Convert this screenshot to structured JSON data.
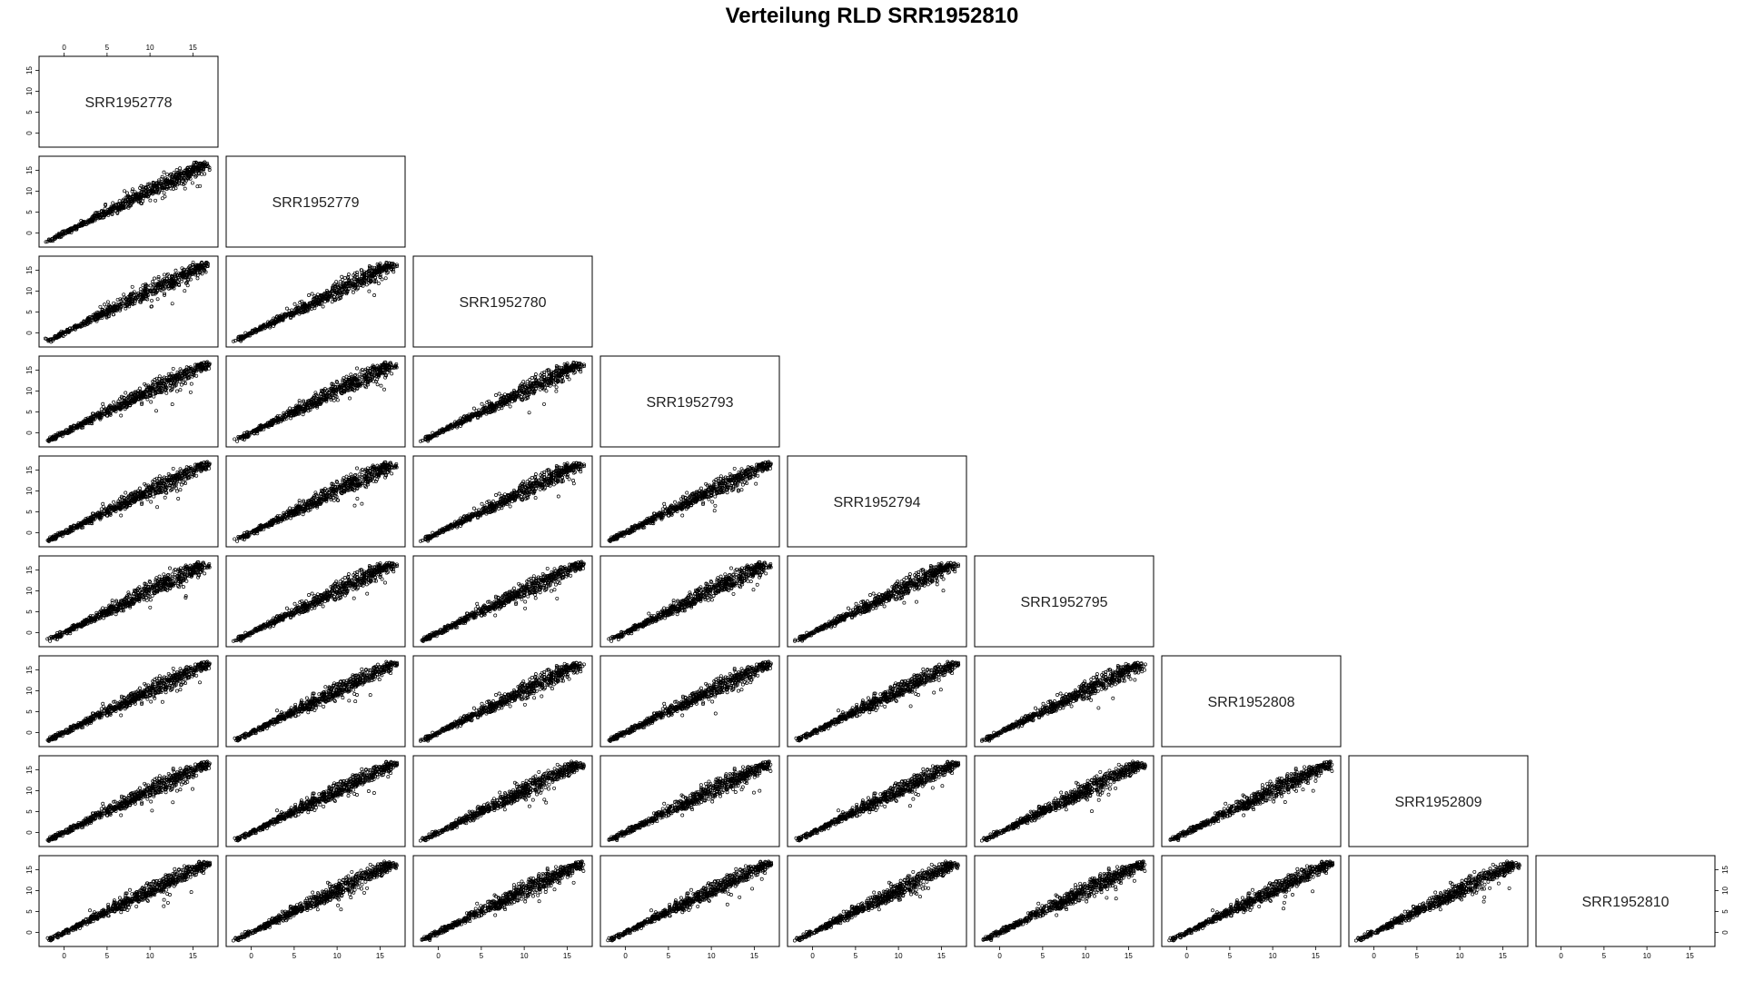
{
  "chart_data": {
    "type": "scatter",
    "title": "Verteilung RLD SRR1952810",
    "layout": "lower-triangle pairs matrix",
    "samples": [
      "SRR1952778",
      "SRR1952779",
      "SRR1952780",
      "SRR1952793",
      "SRR1952794",
      "SRR1952795",
      "SRR1952808",
      "SRR1952809",
      "SRR1952810"
    ],
    "xlim": [
      -2.5,
      17.5
    ],
    "ylim": [
      -2.5,
      17.5
    ],
    "ticks": [
      0,
      5,
      10,
      15
    ],
    "tick_labels": [
      "0",
      "5",
      "10",
      "15"
    ],
    "grid": false,
    "point_style": "open circle",
    "point_color": "#000000",
    "correlation_note": "all panels show strongly correlated points along the diagonal from about (-2,-2) to (17,17)"
  }
}
